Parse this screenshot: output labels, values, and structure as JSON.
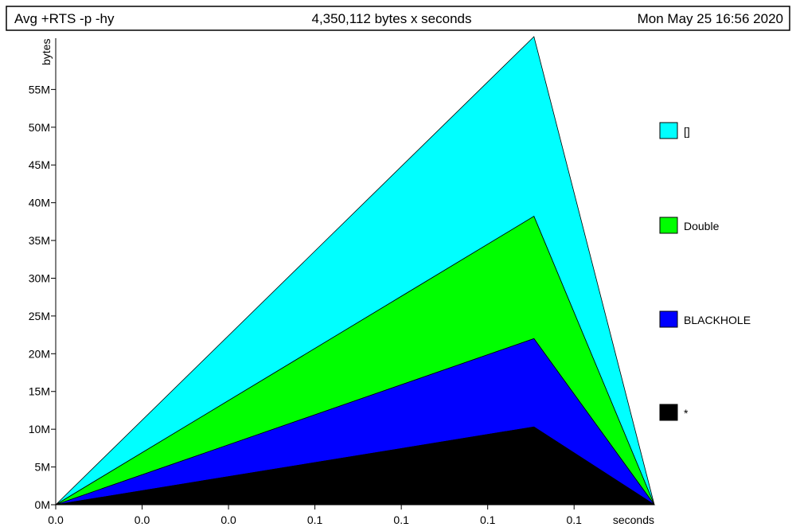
{
  "header": {
    "program": "Avg +RTS -p -hy",
    "total": "4,350,112 bytes x seconds",
    "date": "Mon May 25 16:56 2020"
  },
  "chart_data": {
    "type": "area",
    "stacked": true,
    "ylabel": "bytes",
    "xlabel": "seconds",
    "x": [
      0.0,
      0.155,
      0.194
    ],
    "x_tick_labels": [
      "0.0",
      "0.0",
      "0.0",
      "0.1",
      "0.1",
      "0.1",
      "0.1"
    ],
    "x_tick_values": [
      0.0,
      0.028,
      0.056,
      0.084,
      0.112,
      0.14,
      0.168
    ],
    "xlim": [
      0.0,
      0.194
    ],
    "y_tick_labels": [
      "0M",
      "5M",
      "10M",
      "15M",
      "20M",
      "25M",
      "30M",
      "35M",
      "40M",
      "45M",
      "50M",
      "55M"
    ],
    "y_tick_values": [
      0,
      5000000,
      10000000,
      15000000,
      20000000,
      25000000,
      30000000,
      35000000,
      40000000,
      45000000,
      50000000,
      55000000
    ],
    "ylim": [
      0,
      62000000
    ],
    "series": [
      {
        "name": "*",
        "color": "#000000",
        "values": [
          0,
          10300000,
          0
        ]
      },
      {
        "name": "BLACKHOLE",
        "color": "#0000ff",
        "values": [
          0,
          11700000,
          0
        ]
      },
      {
        "name": "Double",
        "color": "#00ff00",
        "values": [
          0,
          16200000,
          0
        ]
      },
      {
        "name": "[]",
        "color": "#00ffff",
        "values": [
          0,
          23800000,
          0
        ]
      }
    ],
    "legend": [
      {
        "name": "[]",
        "color": "#00ffff"
      },
      {
        "name": "Double",
        "color": "#00ff00"
      },
      {
        "name": "BLACKHOLE",
        "color": "#0000ff"
      },
      {
        "name": "*",
        "color": "#000000"
      }
    ],
    "legend_position": "right",
    "grid": false
  }
}
